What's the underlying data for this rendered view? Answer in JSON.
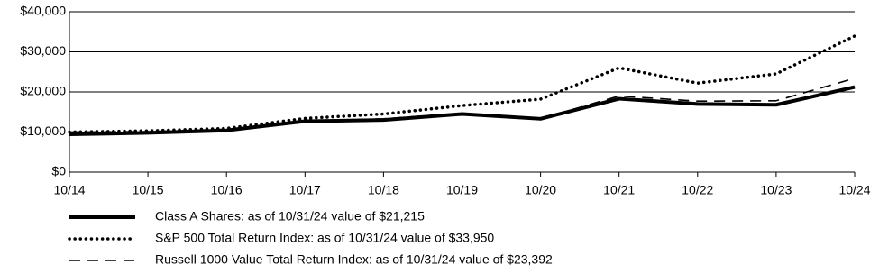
{
  "chart_data": {
    "type": "line",
    "categories": [
      "10/14",
      "10/15",
      "10/16",
      "10/17",
      "10/18",
      "10/19",
      "10/20",
      "10/21",
      "10/22",
      "10/23",
      "10/24"
    ],
    "series": [
      {
        "name": "Class A Shares: as of 10/31/24 value of $21,215",
        "color": "#000000",
        "style": "solid",
        "values": [
          9425,
          9800,
          10400,
          12700,
          13000,
          14500,
          13300,
          18300,
          17000,
          16800,
          21215
        ]
      },
      {
        "name": "S&P 500 Total Return Index: as of 10/31/24 value of $33,950",
        "color": "#000000",
        "style": "dotted",
        "values": [
          10000,
          10300,
          10900,
          13400,
          14500,
          16600,
          18200,
          26000,
          22200,
          24500,
          33950
        ]
      },
      {
        "name": "Russell 1000 Value Total Return Index: as of 10/31/24 value of $23,392",
        "color": "#000000",
        "style": "dashed",
        "values": [
          10000,
          10100,
          10700,
          12800,
          13300,
          14700,
          13300,
          19000,
          17700,
          17800,
          23392
        ]
      }
    ],
    "ylim": [
      0,
      40000
    ],
    "yticks": [
      {
        "value": 0,
        "label": "$0"
      },
      {
        "value": 10000,
        "label": "$10,000"
      },
      {
        "value": 20000,
        "label": "$20,000"
      },
      {
        "value": 30000,
        "label": "$30,000"
      },
      {
        "value": 40000,
        "label": "$40,000"
      }
    ],
    "grid": true
  }
}
